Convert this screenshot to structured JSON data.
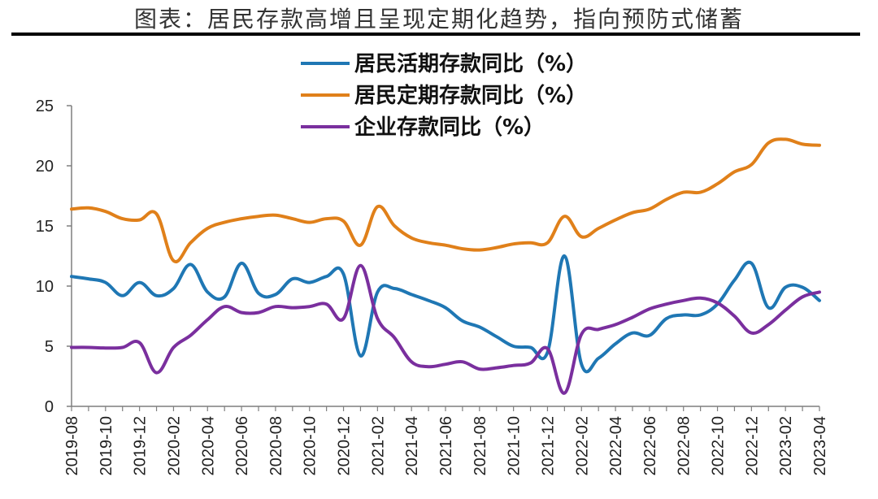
{
  "title": "图表：居民存款高增且呈现定期化趋势，指向预防式储蓄",
  "chart_data": {
    "type": "line",
    "title": "图表：居民存款高增且呈现定期化趋势，指向预防式储蓄",
    "xlabel": "",
    "ylabel": "",
    "ylim": [
      0,
      25
    ],
    "yticks": [
      "0",
      "5",
      "10",
      "15",
      "20",
      "25"
    ],
    "xticks": [
      "2019-08",
      "2019-10",
      "2019-12",
      "2020-02",
      "2020-04",
      "2020-06",
      "2020-08",
      "2020-10",
      "2020-12",
      "2021-02",
      "2021-04",
      "2021-06",
      "2021-08",
      "2021-10",
      "2021-12",
      "2022-02",
      "2022-04",
      "2022-06",
      "2022-08",
      "2022-10",
      "2022-12",
      "2023-02",
      "2023-04"
    ],
    "x": [
      "2019-08",
      "2019-09",
      "2019-10",
      "2019-11",
      "2019-12",
      "2020-01",
      "2020-02",
      "2020-03",
      "2020-04",
      "2020-05",
      "2020-06",
      "2020-07",
      "2020-08",
      "2020-09",
      "2020-10",
      "2020-11",
      "2020-12",
      "2021-01",
      "2021-02",
      "2021-03",
      "2021-04",
      "2021-05",
      "2021-06",
      "2021-07",
      "2021-08",
      "2021-09",
      "2021-10",
      "2021-11",
      "2021-12",
      "2022-01",
      "2022-02",
      "2022-03",
      "2022-04",
      "2022-05",
      "2022-06",
      "2022-07",
      "2022-08",
      "2022-09",
      "2022-10",
      "2022-11",
      "2022-12",
      "2023-01",
      "2023-02",
      "2023-03",
      "2023-04"
    ],
    "legend_position": "top",
    "grid": false,
    "series": [
      {
        "name": "居民活期存款同比（%）",
        "color": "#1f77b4",
        "values": [
          10.8,
          10.6,
          10.3,
          9.2,
          10.3,
          9.2,
          9.8,
          11.8,
          9.5,
          9.1,
          11.9,
          9.4,
          9.3,
          10.6,
          10.3,
          10.8,
          11.0,
          4.2,
          9.5,
          9.8,
          9.3,
          8.8,
          8.2,
          7.1,
          6.6,
          5.8,
          5.0,
          4.9,
          4.5,
          12.5,
          3.5,
          4.0,
          5.2,
          6.1,
          5.9,
          7.3,
          7.6,
          7.6,
          8.5,
          10.5,
          11.9,
          8.2,
          9.9,
          9.9,
          8.8
        ]
      },
      {
        "name": "居民定期存款同比（%）",
        "color": "#e0801a",
        "values": [
          16.4,
          16.5,
          16.2,
          15.6,
          15.5,
          16.0,
          12.1,
          13.6,
          14.8,
          15.3,
          15.6,
          15.8,
          15.9,
          15.6,
          15.3,
          15.6,
          15.4,
          13.4,
          16.6,
          15.0,
          14.0,
          13.6,
          13.4,
          13.1,
          13.0,
          13.2,
          13.5,
          13.6,
          13.6,
          15.8,
          14.1,
          14.8,
          15.5,
          16.1,
          16.4,
          17.2,
          17.8,
          17.8,
          18.5,
          19.5,
          20.1,
          21.9,
          22.2,
          21.8,
          21.7
        ]
      },
      {
        "name": "企业存款同比（%）",
        "color": "#7a2f9e",
        "values": [
          4.9,
          4.9,
          4.85,
          4.9,
          5.3,
          2.8,
          4.9,
          5.9,
          7.2,
          8.3,
          7.8,
          7.8,
          8.3,
          8.2,
          8.3,
          8.5,
          7.3,
          11.7,
          7.3,
          5.7,
          3.7,
          3.3,
          3.5,
          3.7,
          3.1,
          3.2,
          3.4,
          3.6,
          4.8,
          1.1,
          6.0,
          6.4,
          6.8,
          7.4,
          8.1,
          8.5,
          8.8,
          9.0,
          8.6,
          7.5,
          6.1,
          6.8,
          8.0,
          9.1,
          9.5
        ]
      }
    ]
  }
}
